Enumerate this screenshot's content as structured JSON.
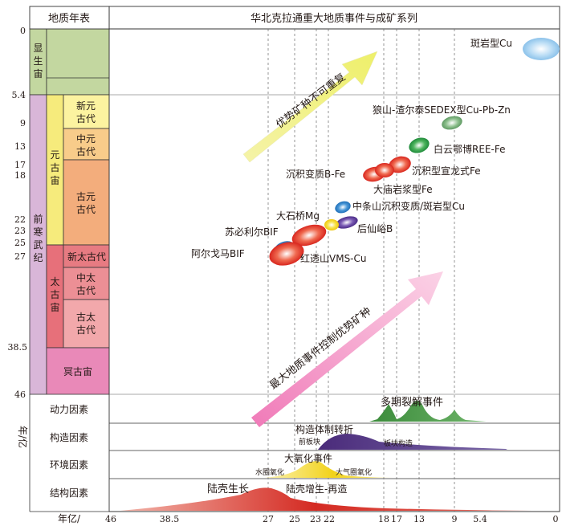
{
  "header": {
    "left_title": "地质年表",
    "main_title": "华北克拉通重大地质事件与成矿系列"
  },
  "timescale": {
    "eons": {
      "phanerozoic": [
        "显",
        "生",
        "宙"
      ],
      "proterozoic": [
        "元",
        "古",
        "宙"
      ],
      "archean": [
        "太",
        "古",
        "宙"
      ],
      "hadean": "冥古宙"
    },
    "precambrian": [
      "前",
      "寒",
      "武",
      "纪"
    ],
    "eras": {
      "neo_proterozoic": [
        "新元",
        "古代"
      ],
      "meso_proterozoic": [
        "中元",
        "古代"
      ],
      "paleo_proterozoic": [
        "古元",
        "古代"
      ],
      "neo_archean": "新太古代",
      "meso_archean": [
        "中太",
        "古代"
      ],
      "paleo_archean": [
        "古太",
        "古代"
      ]
    },
    "age_ticks": [
      "0",
      "5.4",
      "9",
      "13",
      "17",
      "18",
      "22",
      "23",
      "25",
      "27",
      "38.5",
      "46"
    ],
    "y_unit": "年/亿"
  },
  "deposits": [
    {
      "label": "斑岩型Cu",
      "color": "#9ecbee"
    },
    {
      "label": "狼山-渣尔泰SEDEX型Cu-Pb-Zn",
      "color": "#6aa36a"
    },
    {
      "label": "白云鄂博REE-Fe",
      "color": "#2e9a45"
    },
    {
      "label": "沉积型宣龙式Fe",
      "color": "#e23a2e"
    },
    {
      "label": "沉积变质B-Fe",
      "color": "#e23a2e"
    },
    {
      "label": "大庙岩浆型Fe",
      "color": "#e23a2e"
    },
    {
      "label": "中条山沉积变质/斑岩型Cu",
      "color": "#2a7ec6"
    },
    {
      "label": "大石桥Mg",
      "color": "#2a7ec6"
    },
    {
      "label": "后仙峪B",
      "color": "#5b3a96"
    },
    {
      "label": "苏必利尔BIF",
      "color": "#e23a2e"
    },
    {
      "label": "阿尔戈马BIF",
      "color": "#e23a2e"
    },
    {
      "label": "红透山VMS-Cu",
      "color": "#f2d21a"
    }
  ],
  "arrows": {
    "upper": "优势矿种不可重复",
    "lower": "最大地质事件控制优势矿种"
  },
  "factors": {
    "dynamic": {
      "label": "动力因素",
      "event": "多期裂解事件",
      "color": "#3a8a3a"
    },
    "tectonic": {
      "label": "构造因素",
      "event": "构造体制转折",
      "sub_left": "前板块",
      "sub_right": "板块构造",
      "color": "#4a2b7a"
    },
    "environment": {
      "label": "环境因素",
      "event": "大氧化事件",
      "sub_left": "水圈氧化",
      "sub_right": "大气圈氧化",
      "color": "#f2d21a"
    },
    "structural": {
      "label": "结构因素",
      "event_left": "陆壳生长",
      "event_right": "陆壳增生-再造",
      "color": "#d42a22"
    }
  },
  "x_axis": {
    "label": "年亿/",
    "ticks": [
      "46",
      "38.5",
      "27",
      "25",
      "23",
      "22",
      "18",
      "17",
      "13",
      "9",
      "5.4",
      "0"
    ]
  }
}
